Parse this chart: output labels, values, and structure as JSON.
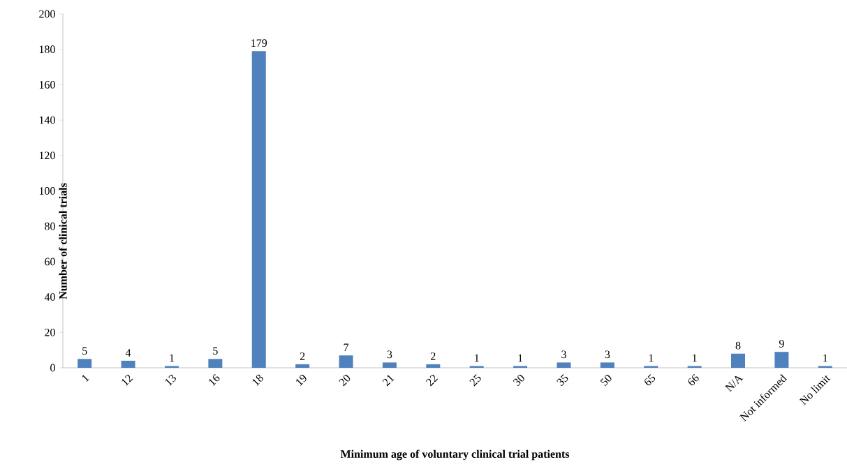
{
  "chart_data": {
    "type": "bar",
    "xlabel": "Minimum age of voluntary clinical trial patients",
    "ylabel": "Number of clinical trials",
    "categories": [
      "1",
      "12",
      "13",
      "16",
      "18",
      "19",
      "20",
      "21",
      "22",
      "25",
      "30",
      "35",
      "50",
      "65",
      "66",
      "N/A",
      "Not informed",
      "No limit"
    ],
    "values": [
      5,
      4,
      1,
      5,
      179,
      2,
      7,
      3,
      2,
      1,
      1,
      3,
      3,
      1,
      1,
      8,
      9,
      1
    ],
    "color": "#4f81bd",
    "ylim": [
      0,
      200
    ],
    "yticks": [
      0,
      20,
      40,
      60,
      80,
      100,
      120,
      140,
      160,
      180,
      200
    ],
    "data_labels": true
  }
}
